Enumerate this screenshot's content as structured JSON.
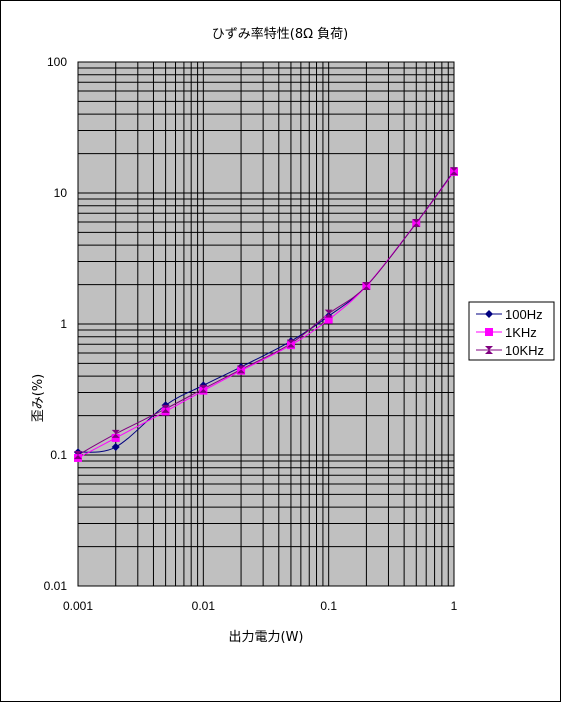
{
  "chart_data": {
    "type": "line",
    "title": "ひずみ率特性(8Ω 負荷)",
    "xlabel": "出力電力(W)",
    "ylabel": "歪み(%)",
    "x_scale": "log",
    "y_scale": "log",
    "xlim": [
      0.001,
      1
    ],
    "ylim": [
      0.01,
      100
    ],
    "x_ticks": [
      "0.001",
      "0.01",
      "0.1",
      "1"
    ],
    "y_ticks": [
      "0.01",
      "0.1",
      "1",
      "10",
      "100"
    ],
    "grid": true,
    "legend_position": "right",
    "plot_background": "#c0c0c0",
    "series": [
      {
        "name": "100Hz",
        "color": "#000080",
        "marker": "diamond",
        "x": [
          0.001,
          0.002,
          0.005,
          0.01,
          0.02,
          0.05,
          0.1,
          0.2,
          0.5,
          1
        ],
        "y": [
          0.105,
          0.115,
          0.24,
          0.34,
          0.47,
          0.74,
          1.15,
          1.95,
          5.9,
          14.8
        ]
      },
      {
        "name": "1KHz",
        "color": "#ff00ff",
        "marker": "square",
        "x": [
          0.001,
          0.002,
          0.005,
          0.01,
          0.02,
          0.05,
          0.1,
          0.2,
          0.5,
          1
        ],
        "y": [
          0.095,
          0.135,
          0.215,
          0.31,
          0.44,
          0.69,
          1.08,
          1.95,
          5.9,
          14.5
        ]
      },
      {
        "name": "10KHz",
        "color": "#800080",
        "marker": "hourglass",
        "x": [
          0.001,
          0.002,
          0.005,
          0.01,
          0.02,
          0.05,
          0.1,
          0.2,
          0.5,
          1
        ],
        "y": [
          0.1,
          0.145,
          0.225,
          0.32,
          0.45,
          0.71,
          1.2,
          1.95,
          5.9,
          14.7
        ]
      }
    ]
  }
}
